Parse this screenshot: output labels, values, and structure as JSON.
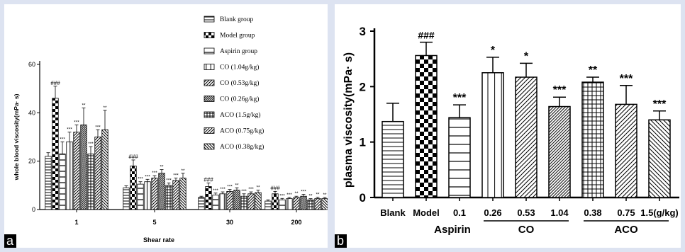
{
  "chart_data": [
    {
      "panel": "a",
      "type": "bar",
      "xlabel": "Shear rate",
      "ylabel": "whole blood viscosity(mPa· s)",
      "ylim": [
        0,
        60
      ],
      "yticks": [
        "0",
        "20",
        "40",
        "60"
      ],
      "categories": [
        "1",
        "5",
        "30",
        "200"
      ],
      "legend_position": "top-right",
      "series": [
        {
          "name": "Blank group",
          "pattern": "hlines",
          "values": [
            22,
            9,
            5,
            3.5
          ],
          "errors": [
            1.5,
            0.8,
            0.5,
            0.5
          ],
          "marks": [
            "",
            "",
            "",
            ""
          ]
        },
        {
          "name": "Model group",
          "pattern": "checker",
          "values": [
            46,
            18,
            9.5,
            6.5
          ],
          "errors": [
            5,
            2.5,
            1.5,
            1
          ],
          "marks": [
            "###",
            "###",
            "###",
            "###"
          ]
        },
        {
          "name": "Aspirin group",
          "pattern": "hlines-wide",
          "values": [
            23,
            10.5,
            6,
            4
          ],
          "errors": [
            5,
            1,
            0.8,
            0.6
          ],
          "marks": [
            "***",
            "***",
            "***",
            "***"
          ]
        },
        {
          "name": "CO (1.04g/kg)",
          "pattern": "vlines",
          "values": [
            28,
            11.5,
            6.5,
            4.5
          ],
          "errors": [
            4,
            1,
            0.8,
            0.5
          ],
          "marks": [
            "***",
            "***",
            "***",
            "***"
          ]
        },
        {
          "name": "CO (0.53g/kg)",
          "pattern": "diag",
          "values": [
            32,
            13,
            7.5,
            5
          ],
          "errors": [
            3,
            1,
            0.8,
            0.5
          ],
          "marks": [
            "***",
            "***",
            "***",
            "**"
          ]
        },
        {
          "name": "CO (0.26g/kg)",
          "pattern": "diag-dense",
          "values": [
            35,
            15,
            8,
            5.5
          ],
          "errors": [
            7,
            1.5,
            1,
            0.8
          ],
          "marks": [
            "**",
            "**",
            "**",
            "***"
          ]
        },
        {
          "name": "ACO (1.5g/kg)",
          "pattern": "grid",
          "values": [
            23,
            10,
            5.5,
            4
          ],
          "errors": [
            3,
            1,
            1,
            0.5
          ],
          "marks": [
            "***",
            "***",
            "***",
            "**"
          ]
        },
        {
          "name": "ACO (0.75g/kg)",
          "pattern": "diag",
          "values": [
            30,
            12,
            6.5,
            4.5
          ],
          "errors": [
            3,
            1,
            0.8,
            0.6
          ],
          "marks": [
            "***",
            "***",
            "***",
            "**"
          ]
        },
        {
          "name": "ACO (0.38g/kg)",
          "pattern": "antidiag",
          "values": [
            33,
            13,
            7,
            4.5
          ],
          "errors": [
            8,
            2,
            1,
            0.5
          ],
          "marks": [
            "**",
            "**",
            "**",
            "**"
          ]
        }
      ],
      "panel_label": "a"
    },
    {
      "panel": "b",
      "type": "bar",
      "xlabel": "",
      "ylabel": "plasma viscosity(mPa· s)",
      "ylim": [
        0,
        3
      ],
      "yticks": [
        "0",
        "1",
        "2",
        "3"
      ],
      "categories": [
        "Blank",
        "Model",
        "0.1",
        "0.26",
        "0.53",
        "1.04",
        "0.38",
        "0.75",
        "1.5(g/kg)"
      ],
      "values": [
        1.37,
        2.56,
        1.44,
        2.25,
        2.17,
        1.64,
        2.08,
        1.68,
        1.4
      ],
      "errors": [
        0.33,
        0.24,
        0.23,
        0.28,
        0.25,
        0.17,
        0.09,
        0.34,
        0.16
      ],
      "marks": [
        "",
        "###",
        "***",
        "*",
        "*",
        "***",
        "**",
        "***",
        "***"
      ],
      "patterns": [
        "hlines",
        "checker",
        "hlines-wide",
        "vlines",
        "diag",
        "diag-dense",
        "grid",
        "diag",
        "antidiag"
      ],
      "groups": [
        {
          "label": "Aspirin",
          "from": 2,
          "to": 2
        },
        {
          "label": "CO",
          "from": 3,
          "to": 5
        },
        {
          "label": "ACO",
          "from": 6,
          "to": 8
        }
      ],
      "panel_label": "b"
    }
  ]
}
